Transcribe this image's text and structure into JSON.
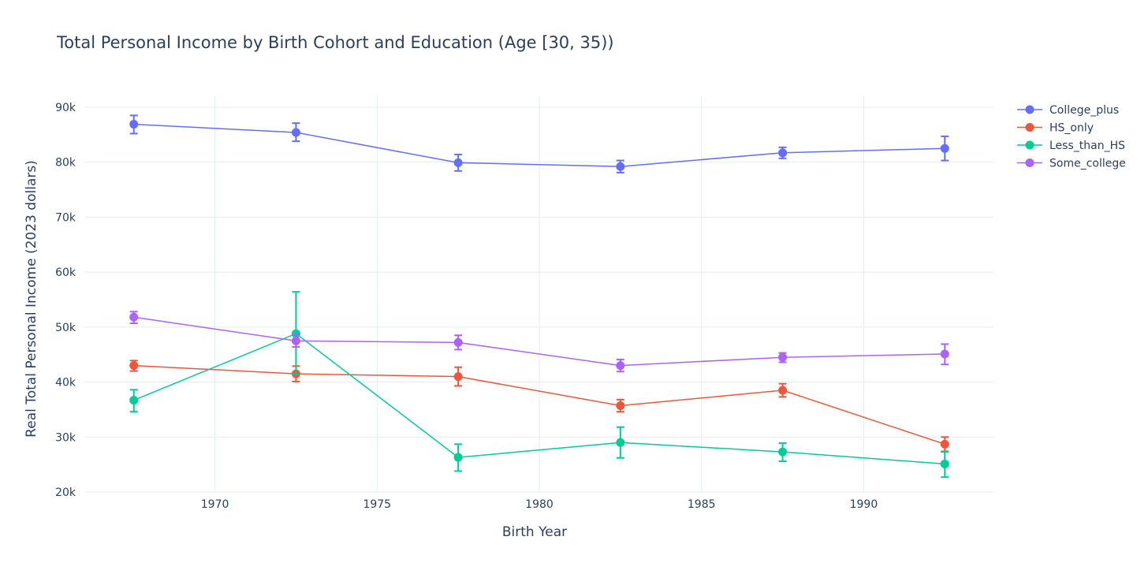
{
  "chart_data": {
    "type": "line",
    "title": "Total Personal Income by Birth Cohort and Education (Age [30, 35))",
    "xlabel": "Birth Year",
    "ylabel": "Real Total Personal Income (2023 dollars)",
    "xlim": [
      1966.0,
      1994.0
    ],
    "ylim": [
      20000,
      92000
    ],
    "x_ticks": [
      1970,
      1975,
      1980,
      1985,
      1990
    ],
    "x_tick_labels": [
      "1970",
      "1975",
      "1980",
      "1985",
      "1990"
    ],
    "y_ticks": [
      20000,
      30000,
      40000,
      50000,
      60000,
      70000,
      80000,
      90000
    ],
    "y_tick_labels": [
      "20k",
      "30k",
      "40k",
      "50k",
      "60k",
      "70k",
      "80k",
      "90k"
    ],
    "grid": true,
    "legend_position": "top-right",
    "x": [
      1967.5,
      1972.5,
      1977.5,
      1982.5,
      1987.5,
      1992.5
    ],
    "series": [
      {
        "name": "College_plus",
        "color": "#636efa",
        "values": [
          86900,
          85400,
          79900,
          79200,
          81700,
          82500
        ],
        "err_lower": [
          85200,
          83800,
          78400,
          78100,
          80700,
          80300
        ],
        "err_upper": [
          88500,
          87100,
          81400,
          80300,
          82700,
          84700
        ]
      },
      {
        "name": "HS_only",
        "color": "#ef553b",
        "values": [
          43000,
          41500,
          41000,
          35700,
          38500,
          28700
        ],
        "err_lower": [
          42000,
          40100,
          39300,
          34600,
          37300,
          27300
        ],
        "err_upper": [
          43900,
          42900,
          42700,
          36800,
          39700,
          30000
        ]
      },
      {
        "name": "Less_than_HS",
        "color": "#00cc96",
        "values": [
          36700,
          48800,
          26300,
          29000,
          27300,
          25100
        ],
        "err_lower": [
          34600,
          41400,
          23800,
          26200,
          25600,
          22700
        ],
        "err_upper": [
          38600,
          56400,
          28700,
          31800,
          28900,
          27400
        ]
      },
      {
        "name": "Some_college",
        "color": "#ab63fa",
        "values": [
          51800,
          47500,
          47200,
          43000,
          44500,
          45100
        ],
        "err_lower": [
          50700,
          46400,
          45900,
          41900,
          43600,
          43200
        ],
        "err_upper": [
          52800,
          48600,
          48500,
          44100,
          45300,
          46900
        ]
      }
    ]
  }
}
